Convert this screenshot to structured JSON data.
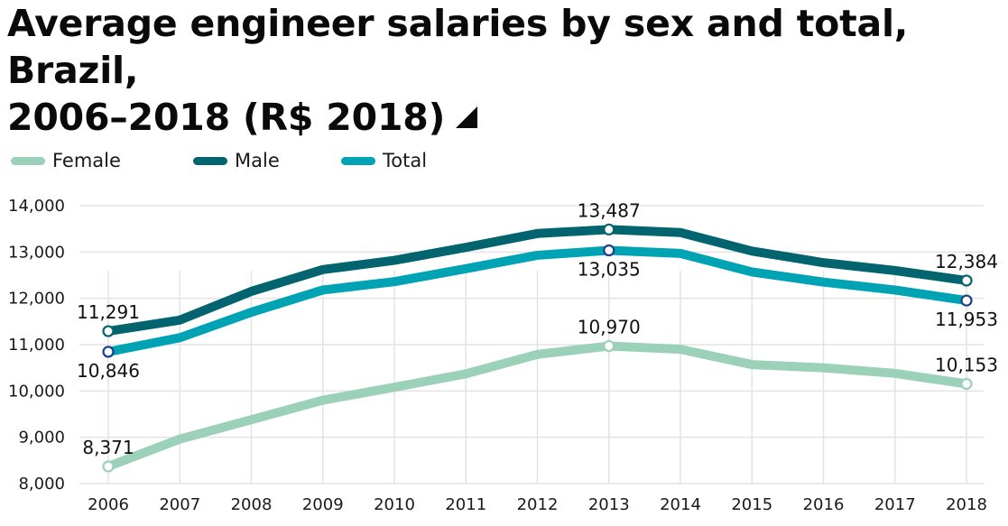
{
  "title_line1": "Average engineer salaries by sex and total, Brazil,",
  "title_line2": "2006–2018 (R$ 2018)",
  "title_icon": "expand-triangle-icon",
  "chart_data": {
    "type": "line",
    "title": "Average engineer salaries by sex and total, Brazil, 2006–2018 (R$ 2018)",
    "xlabel": "",
    "ylabel": "",
    "x": [
      "2006",
      "2007",
      "2008",
      "2009",
      "2010",
      "2011",
      "2012",
      "2013",
      "2014",
      "2015",
      "2016",
      "2017",
      "2018"
    ],
    "ylim": [
      8000,
      14000
    ],
    "yticks": [
      8000,
      9000,
      10000,
      11000,
      12000,
      13000,
      14000
    ],
    "ytick_labels": [
      "8,000",
      "9,000",
      "10,000",
      "11,000",
      "12,000",
      "13,000",
      "14,000"
    ],
    "grid": true,
    "legend_position": "top-left",
    "series": [
      {
        "name": "Female",
        "color": "#9bd0b9",
        "marker_color": "#9bd0b9",
        "values": [
          8371,
          8960,
          9380,
          9800,
          10080,
          10370,
          10790,
          10970,
          10900,
          10570,
          10500,
          10380,
          10153
        ]
      },
      {
        "name": "Male",
        "color": "#02646f",
        "marker_color": "#02646f",
        "values": [
          11291,
          11530,
          12150,
          12620,
          12820,
          13100,
          13400,
          13487,
          13420,
          13020,
          12770,
          12600,
          12384
        ]
      },
      {
        "name": "Total",
        "color": "#00a3b4",
        "marker_color": "#1c3f8c",
        "values": [
          10846,
          11150,
          11700,
          12180,
          12360,
          12640,
          12930,
          13035,
          12970,
          12570,
          12350,
          12180,
          11953
        ]
      }
    ],
    "annotations": [
      {
        "series": "Male",
        "x": "2006",
        "text": "11,291",
        "pos": "above"
      },
      {
        "series": "Total",
        "x": "2006",
        "text": "10,846",
        "pos": "below"
      },
      {
        "series": "Female",
        "x": "2006",
        "text": "8,371",
        "pos": "above"
      },
      {
        "series": "Male",
        "x": "2013",
        "text": "13,487",
        "pos": "above"
      },
      {
        "series": "Total",
        "x": "2013",
        "text": "13,035",
        "pos": "below"
      },
      {
        "series": "Female",
        "x": "2013",
        "text": "10,970",
        "pos": "above"
      },
      {
        "series": "Male",
        "x": "2018",
        "text": "12,384",
        "pos": "above"
      },
      {
        "series": "Total",
        "x": "2018",
        "text": "11,953",
        "pos": "below"
      },
      {
        "series": "Female",
        "x": "2018",
        "text": "10,153",
        "pos": "above"
      }
    ]
  }
}
